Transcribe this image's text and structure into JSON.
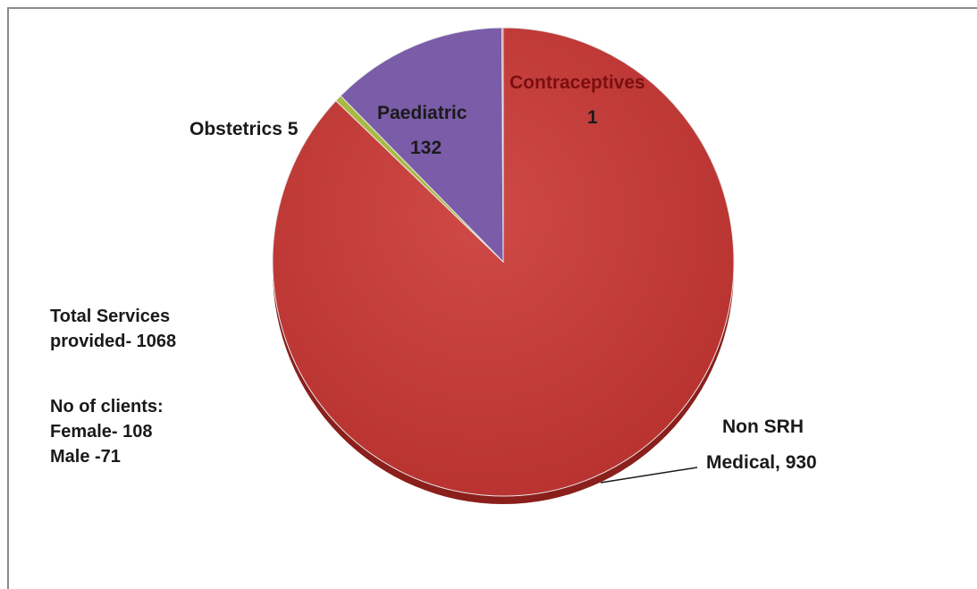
{
  "chart_data": {
    "type": "pie",
    "slices": [
      {
        "label": "Non SRH Medical",
        "value": 930,
        "color": "#c0403d"
      },
      {
        "label": "Obstetrics",
        "value": 5,
        "color": "#a9b941"
      },
      {
        "label": "Paediatric",
        "value": 132,
        "color": "#7a5ca8"
      },
      {
        "label": "Contraceptives",
        "value": 1,
        "color": "#c0403d"
      }
    ],
    "labels": {
      "non_srh_line1": "Non SRH",
      "non_srh_line2": "Medical, 930",
      "obstetrics": "Obstetrics  5",
      "paediatric_line1": "Paediatric",
      "paediatric_line2": "132",
      "contraceptives_line1": "Contraceptives",
      "contraceptives_line2": "1"
    }
  },
  "notes": {
    "total_line1": "Total Services",
    "total_line2": "provided- 1068",
    "clients_line1": "No of clients:",
    "clients_line2": "Female- 108",
    "clients_line3": "Male -71"
  }
}
